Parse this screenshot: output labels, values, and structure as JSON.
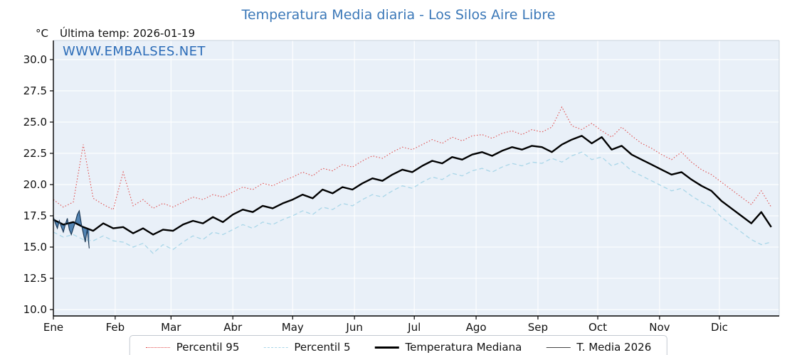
{
  "header": {
    "title": "Temperatura Media diaria - Los Silos Aire Libre",
    "unit_label": "°C",
    "last_temp_label": "Última temp: 2026-01-19",
    "watermark": "WWW.EMBALSES.NET"
  },
  "colors": {
    "title": "#3b78b8",
    "watermark": "#2b6cb8",
    "plot_bg": "#e9f0f8",
    "grid": "#ffffff",
    "p95": "#e04b4b",
    "p5": "#a9d6e8",
    "median": "#000000",
    "t2026_line": "#16324f",
    "t2026_fill": "#4178ab"
  },
  "chart_data": {
    "type": "line",
    "title": "Temperatura Media diaria - Los Silos Aire Libre",
    "ylabel": "°C",
    "ylim": [
      9.49,
      31.53
    ],
    "y_ticks": [
      10.0,
      12.5,
      15.0,
      17.5,
      20.0,
      22.5,
      25.0,
      27.5,
      30.0
    ],
    "x_months": [
      "Ene",
      "Feb",
      "Mar",
      "Abr",
      "May",
      "Jun",
      "Jul",
      "Ago",
      "Sep",
      "Oct",
      "Nov",
      "Dic"
    ],
    "month_start_days": [
      1,
      32,
      60,
      91,
      121,
      152,
      182,
      213,
      244,
      274,
      305,
      335
    ],
    "grid": true,
    "legend_position": "bottom",
    "days": [
      1,
      6,
      11,
      16,
      21,
      26,
      31,
      36,
      41,
      46,
      51,
      56,
      61,
      66,
      71,
      76,
      81,
      86,
      91,
      96,
      101,
      106,
      111,
      116,
      121,
      126,
      131,
      136,
      141,
      146,
      151,
      156,
      161,
      166,
      171,
      176,
      181,
      186,
      191,
      196,
      201,
      206,
      211,
      216,
      221,
      226,
      231,
      236,
      241,
      246,
      251,
      256,
      261,
      266,
      271,
      276,
      281,
      286,
      291,
      296,
      301,
      306,
      311,
      316,
      321,
      326,
      331,
      336,
      341,
      346,
      351,
      356,
      361
    ],
    "series": [
      {
        "name": "Percentil 95",
        "style": "dotted",
        "values": [
          18.8,
          18.2,
          18.6,
          23.2,
          18.9,
          18.4,
          18.0,
          21.0,
          18.3,
          18.8,
          18.1,
          18.5,
          18.2,
          18.6,
          19.0,
          18.8,
          19.2,
          19.0,
          19.4,
          19.8,
          19.6,
          20.1,
          19.9,
          20.3,
          20.6,
          21.0,
          20.7,
          21.3,
          21.1,
          21.6,
          21.4,
          21.9,
          22.3,
          22.1,
          22.6,
          23.0,
          22.8,
          23.2,
          23.6,
          23.3,
          23.8,
          23.5,
          23.9,
          24.0,
          23.7,
          24.1,
          24.3,
          24.0,
          24.4,
          24.2,
          24.6,
          26.2,
          24.7,
          24.4,
          24.9,
          24.3,
          23.8,
          24.6,
          23.9,
          23.3,
          22.9,
          22.4,
          22.0,
          22.6,
          21.8,
          21.2,
          20.8,
          20.2,
          19.6,
          19.0,
          18.4,
          19.5,
          18.2
        ]
      },
      {
        "name": "Percentil 5",
        "style": "dashed",
        "values": [
          16.2,
          15.8,
          16.0,
          15.6,
          15.5,
          15.9,
          15.5,
          15.4,
          15.0,
          15.3,
          14.5,
          15.2,
          14.8,
          15.4,
          15.9,
          15.6,
          16.2,
          16.0,
          16.4,
          16.8,
          16.5,
          17.0,
          16.8,
          17.2,
          17.5,
          17.9,
          17.6,
          18.2,
          18.0,
          18.5,
          18.3,
          18.8,
          19.2,
          19.0,
          19.5,
          19.9,
          19.7,
          20.2,
          20.6,
          20.4,
          20.9,
          20.7,
          21.1,
          21.3,
          21.0,
          21.4,
          21.7,
          21.5,
          21.8,
          21.7,
          22.1,
          21.8,
          22.3,
          22.6,
          22.0,
          22.2,
          21.5,
          21.8,
          21.1,
          20.7,
          20.3,
          19.9,
          19.5,
          19.7,
          19.1,
          18.6,
          18.2,
          17.4,
          16.8,
          16.2,
          15.6,
          15.2,
          15.4
        ]
      },
      {
        "name": "Temperatura Mediana",
        "style": "solid-thick",
        "values": [
          17.2,
          16.8,
          17.0,
          16.6,
          16.3,
          16.9,
          16.5,
          16.6,
          16.1,
          16.5,
          16.0,
          16.4,
          16.3,
          16.8,
          17.1,
          16.9,
          17.4,
          17.0,
          17.6,
          18.0,
          17.8,
          18.3,
          18.1,
          18.5,
          18.8,
          19.2,
          18.9,
          19.6,
          19.3,
          19.8,
          19.6,
          20.1,
          20.5,
          20.3,
          20.8,
          21.2,
          21.0,
          21.5,
          21.9,
          21.7,
          22.2,
          22.0,
          22.4,
          22.6,
          22.3,
          22.7,
          23.0,
          22.8,
          23.1,
          23.0,
          22.6,
          23.2,
          23.6,
          23.9,
          23.3,
          23.8,
          22.8,
          23.1,
          22.4,
          22.0,
          21.6,
          21.2,
          20.8,
          21.0,
          20.4,
          19.9,
          19.5,
          18.7,
          18.1,
          17.5,
          16.9,
          17.8,
          16.6
        ]
      },
      {
        "name": "T. Media 2026",
        "style": "solid-thin",
        "days": [
          1,
          2,
          3,
          4,
          5,
          6,
          7,
          8,
          9,
          10,
          11,
          12,
          13,
          14,
          15,
          16,
          17,
          18,
          19
        ],
        "values": [
          17.4,
          16.9,
          16.5,
          17.1,
          16.6,
          16.2,
          16.8,
          17.3,
          16.4,
          16.0,
          16.5,
          17.0,
          17.6,
          17.9,
          16.9,
          16.1,
          15.4,
          16.4,
          14.9
        ]
      }
    ]
  }
}
